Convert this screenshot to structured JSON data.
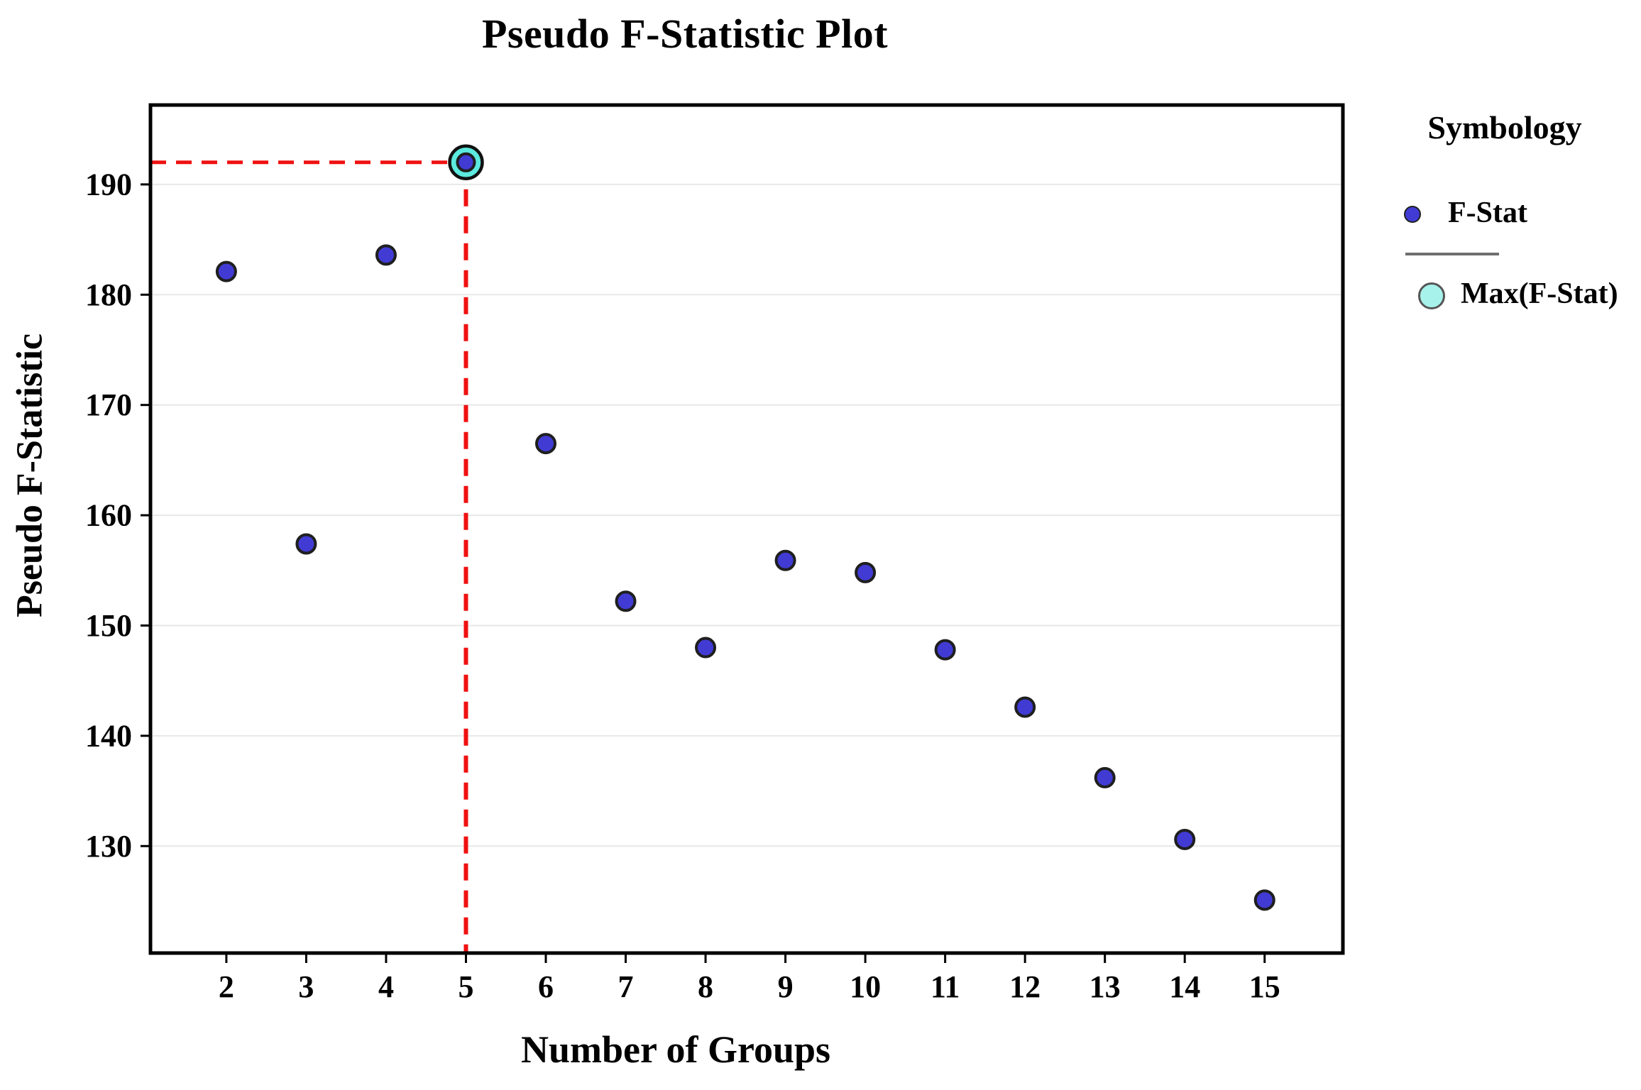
{
  "chart": {
    "title": "Pseudo F-Statistic Plot",
    "x_axis_label": "Number of Groups",
    "y_axis_label": "Pseudo F-Statistic"
  },
  "legend": {
    "title": "Symbology",
    "items": [
      {
        "label": "F-Stat",
        "marker": "blue-dot"
      },
      {
        "label": "Max(F-Stat)",
        "marker": "cyan-circle"
      }
    ]
  },
  "colors": {
    "point_fill": "#413bd4",
    "point_stroke": "#1f1f1f",
    "max_ring_fill": "#5ceade",
    "max_ring_stroke": "#111111",
    "legend_max_fill": "#a8f2ec",
    "legend_max_stroke": "#555555",
    "crosshair_red": "#ef1010",
    "gridline": "#e8e8e8",
    "axis": "#000000",
    "legend_divider": "#6f6f6f"
  },
  "chart_data": {
    "type": "scatter",
    "title": "Pseudo F-Statistic Plot",
    "xlabel": "Number of Groups",
    "ylabel": "Pseudo F-Statistic",
    "x": [
      2,
      3,
      4,
      5,
      6,
      7,
      8,
      9,
      10,
      11,
      12,
      13,
      14,
      15
    ],
    "y": [
      182.1,
      157.4,
      183.6,
      192.0,
      166.5,
      152.2,
      148.0,
      155.9,
      154.8,
      147.8,
      142.6,
      136.2,
      130.6,
      125.1
    ],
    "series_name": "F-Stat",
    "max_point": {
      "x": 5,
      "y": 192.0,
      "label": "Max(F-Stat)"
    },
    "x_ticks": [
      2,
      3,
      4,
      5,
      6,
      7,
      8,
      9,
      10,
      11,
      12,
      13,
      14,
      15
    ],
    "y_ticks": [
      130,
      140,
      150,
      160,
      170,
      180,
      190
    ],
    "xlim": [
      1.05,
      15.98
    ],
    "ylim": [
      120.3,
      197.2
    ],
    "grid": "horizontal-only",
    "legend_position": "right-outside",
    "annotations": "red dashed crosshair from axes to max point at x=5"
  }
}
